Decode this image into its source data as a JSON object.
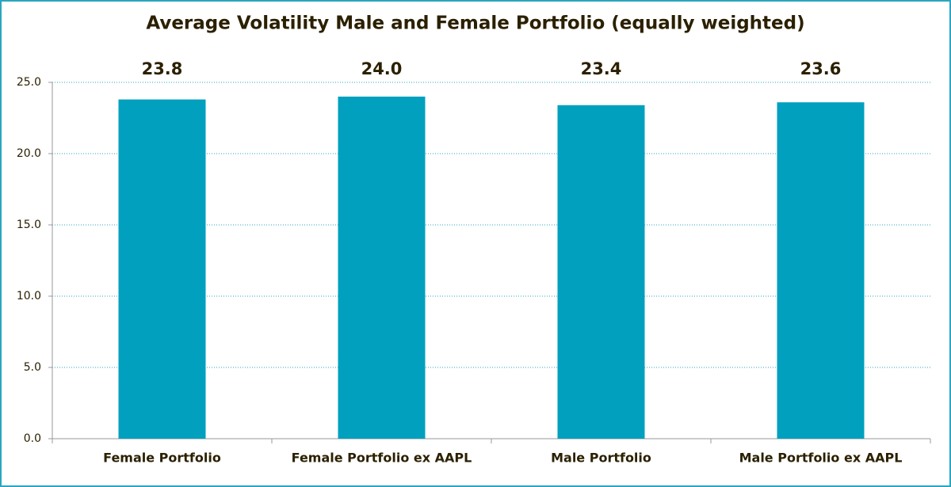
{
  "chart_data": {
    "type": "bar",
    "title": "Average Volatility Male and Female Portfolio (equally weighted)",
    "categories": [
      "Female Portfolio",
      "Female Portfolio ex AAPL",
      "Male Portfolio",
      "Male Portfolio ex AAPL"
    ],
    "values": [
      23.8,
      24.0,
      23.4,
      23.6
    ],
    "value_labels": [
      "23.8",
      "24.0",
      "23.4",
      "23.6"
    ],
    "color": "#00a0be",
    "ylim": [
      0,
      25
    ],
    "yticks": [
      {
        "value": 0,
        "label": "0.0"
      },
      {
        "value": 5,
        "label": "5.0"
      },
      {
        "value": 10,
        "label": "10.0"
      },
      {
        "value": 15,
        "label": "15.0"
      },
      {
        "value": 20,
        "label": "20.0"
      },
      {
        "value": 25,
        "label": "25.0"
      }
    ],
    "grid": true
  }
}
